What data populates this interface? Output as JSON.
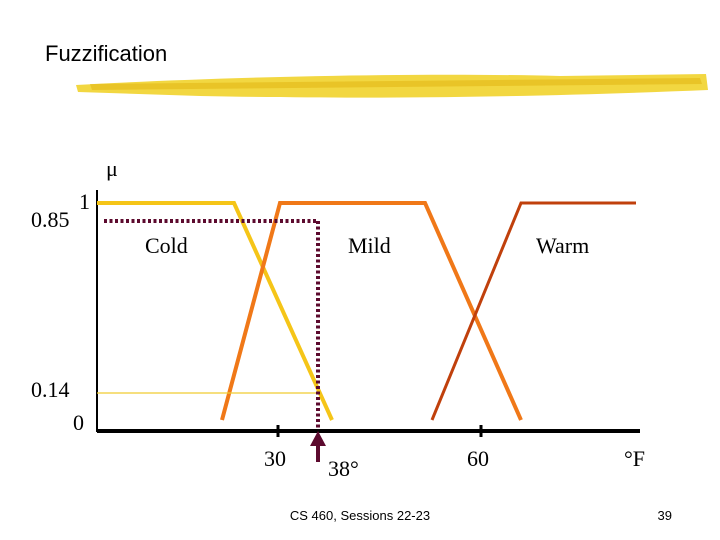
{
  "slide": {
    "title": "Fuzzification",
    "footer": "CS 460,  Sessions 22-23",
    "page_number": "39"
  },
  "diagram": {
    "y_axis_symbol": "μ",
    "y_tick_max": "1",
    "y_tick_min": "0",
    "membership_high": "0.85",
    "membership_low": "0.14",
    "x_ticks": [
      "30",
      "60"
    ],
    "x_unit": "°F",
    "input_label": "38°",
    "sets": [
      {
        "name": "Cold",
        "color": "#f5c518"
      },
      {
        "name": "Mild",
        "color": "#f07818"
      },
      {
        "name": "Warm",
        "color": "#c0400c"
      }
    ],
    "marker_color": "#5c0a2e",
    "underline_color": "#f0d020"
  }
}
